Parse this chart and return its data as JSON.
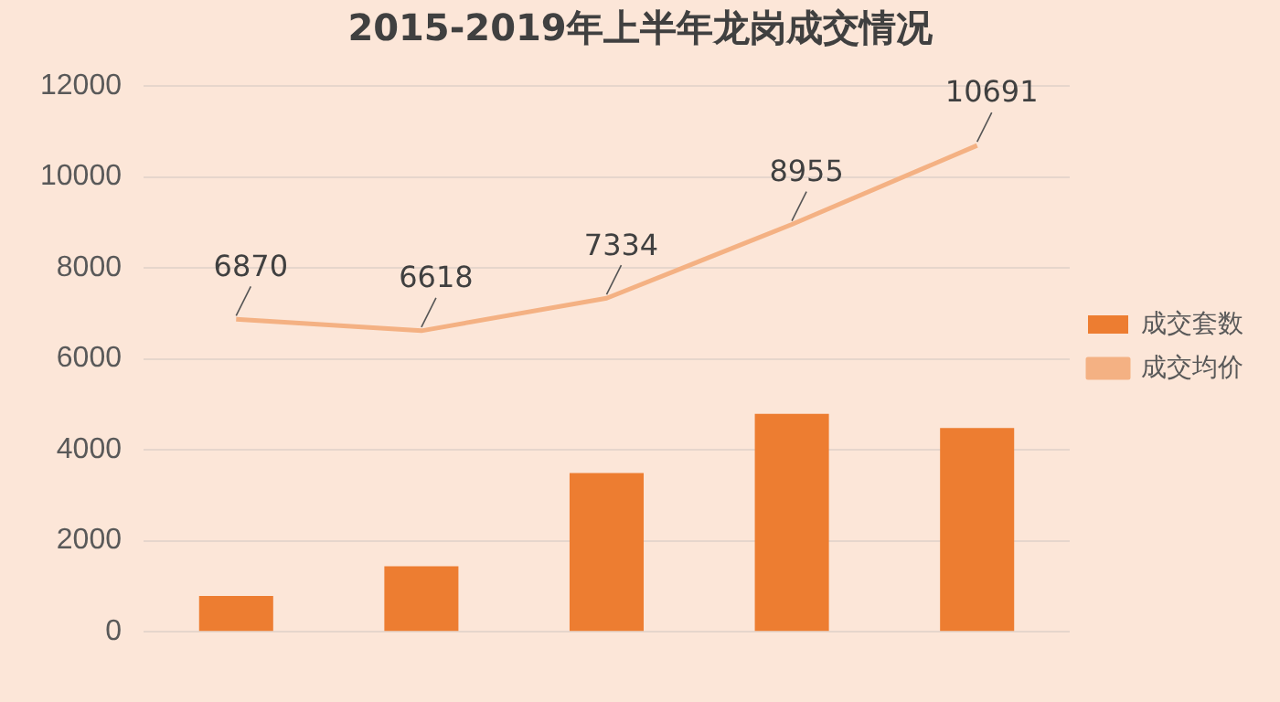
{
  "chart_data": {
    "type": "bar",
    "title": "2015-2019年上半年龙岗成交情况",
    "categories": [
      null,
      null,
      null,
      null,
      null
    ],
    "series": [
      {
        "name": "成交套数",
        "color": "#ed7d31",
        "values": [
          790,
          1440,
          3490,
          4790,
          4480
        ]
      },
      {
        "name": "成交均价",
        "type": "line",
        "color": "#f4b183",
        "values": [
          6870,
          6618,
          7334,
          8955,
          10691
        ],
        "value_labels": [
          "6870",
          "6618",
          "7334",
          "8955",
          "10691"
        ]
      }
    ],
    "ylim": [
      0,
      12000
    ],
    "yticks": [
      0,
      2000,
      4000,
      6000,
      8000,
      10000,
      12000
    ],
    "grid": "y",
    "legend": "right",
    "marker": "none"
  }
}
